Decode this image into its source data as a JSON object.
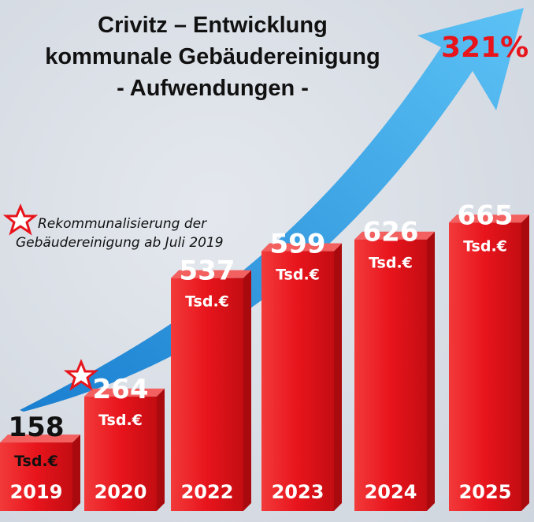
{
  "chart_data": {
    "type": "bar",
    "title_lines": [
      "Crivitz – Entwicklung",
      "kommunale Gebäudereinigung",
      "- Aufwendungen -"
    ],
    "categories": [
      "2019",
      "2020",
      "2022",
      "2023",
      "2024",
      "2025"
    ],
    "values": [
      158,
      264,
      537,
      599,
      626,
      665
    ],
    "unit": "Tsd.€",
    "growth_label": "321%",
    "annotation": [
      "Rekommunalisierung der",
      "Gebäudereinigung ab Juli 2019"
    ],
    "colors": {
      "bar": "#e8141c",
      "arrow": "#2a9be0",
      "growth": "#e8141c"
    }
  }
}
